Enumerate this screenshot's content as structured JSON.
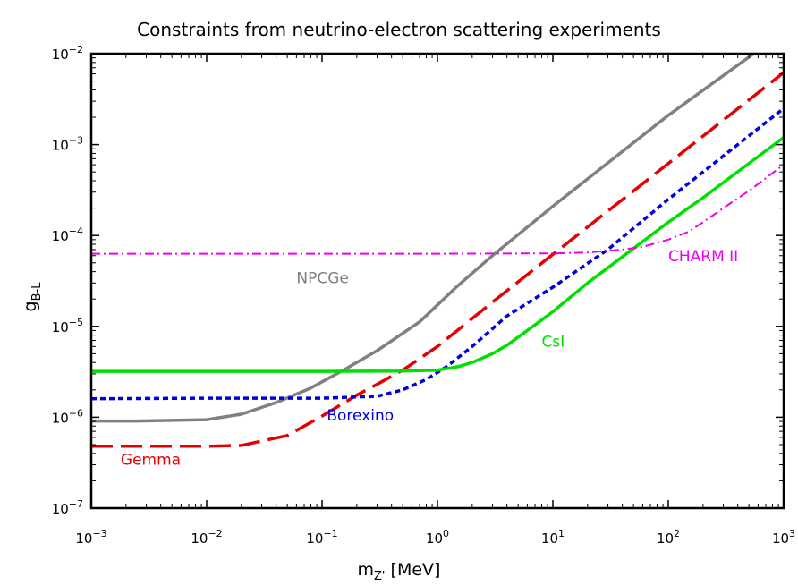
{
  "chart_data": {
    "type": "line",
    "title": "Constraints from neutrino-electron scattering experiments",
    "xlabel": {
      "base": "m",
      "sub": "Z'",
      "unit": " [MeV]"
    },
    "ylabel": {
      "base": "g",
      "sub": "B-L"
    },
    "xscale": "log",
    "yscale": "log",
    "xlim": [
      0.001,
      1000
    ],
    "ylim": [
      1e-07,
      0.01
    ],
    "grid": false,
    "x_ticks": [
      {
        "base": "10",
        "exp": "−3"
      },
      {
        "base": "10",
        "exp": "−2"
      },
      {
        "base": "10",
        "exp": "−1"
      },
      {
        "base": "10",
        "exp": "0"
      },
      {
        "base": "10",
        "exp": "1"
      },
      {
        "base": "10",
        "exp": "2"
      },
      {
        "base": "10",
        "exp": "3"
      }
    ],
    "y_ticks": [
      {
        "base": "10",
        "exp": "−7"
      },
      {
        "base": "10",
        "exp": "−6"
      },
      {
        "base": "10",
        "exp": "−5"
      },
      {
        "base": "10",
        "exp": "−4"
      },
      {
        "base": "10",
        "exp": "−3"
      },
      {
        "base": "10",
        "exp": "−2"
      }
    ],
    "series": [
      {
        "name": "NPCGe",
        "color": "#808080",
        "style": "solid",
        "x": [
          0.001,
          0.0025,
          0.01,
          0.02,
          0.04,
          0.08,
          0.16,
          0.3,
          0.7,
          1.5,
          3,
          10,
          100,
          700
        ],
        "y": [
          9.1e-07,
          9.1e-07,
          9.4e-07,
          1.08e-06,
          1.45e-06,
          2.1e-06,
          3.4e-06,
          5.4e-06,
          1.12e-05,
          2.8e-05,
          6e-05,
          0.00021,
          0.0021,
          0.0125
        ]
      },
      {
        "name": "Gemma",
        "color": "#e60000",
        "style": "dashed",
        "x": [
          0.001,
          0.01,
          0.02,
          0.05,
          0.1,
          0.2,
          0.3,
          0.5,
          1,
          3,
          10,
          100,
          1000
        ],
        "y": [
          4.8e-07,
          4.8e-07,
          4.9e-07,
          6.3e-07,
          1.03e-06,
          1.75e-06,
          2.3e-06,
          3.3e-06,
          6e-06,
          1.85e-05,
          6.2e-05,
          0.00062,
          0.0062
        ]
      },
      {
        "name": "Borexino",
        "color": "#0000dd",
        "style": "dotted",
        "x": [
          0.001,
          0.01,
          0.1,
          0.3,
          0.5,
          0.8,
          1.2,
          2,
          4,
          10,
          30,
          100,
          1000
        ],
        "y": [
          1.6e-06,
          1.62e-06,
          1.62e-06,
          1.7e-06,
          2e-06,
          2.6e-06,
          3.6e-06,
          6e-06,
          1.3e-05,
          2.7e-05,
          7e-05,
          0.00025,
          0.0025
        ]
      },
      {
        "name": "CsI",
        "color": "#00e000",
        "style": "solid",
        "x": [
          0.001,
          0.1,
          0.5,
          1,
          1.5,
          2,
          3,
          4,
          6,
          10,
          20,
          50,
          100,
          200,
          1000
        ],
        "y": [
          3.2e-06,
          3.2e-06,
          3.22e-06,
          3.3e-06,
          3.6e-06,
          4e-06,
          5e-06,
          6.2e-06,
          9e-06,
          1.45e-05,
          3e-05,
          7.2e-05,
          0.00014,
          0.00026,
          0.0012
        ]
      },
      {
        "name": "CHARM II",
        "color": "#ee00ee",
        "style": "dashdot",
        "x": [
          0.001,
          1,
          10,
          20,
          40,
          60,
          100,
          150,
          200,
          300,
          500,
          1000
        ],
        "y": [
          6.3e-05,
          6.3e-05,
          6.35e-05,
          6.5e-05,
          7e-05,
          7.5e-05,
          9e-05,
          0.00011,
          0.00014,
          0.0002,
          0.00031,
          0.0006
        ]
      }
    ],
    "annotations": [
      {
        "text": "NPCGe",
        "color": "#808080",
        "x": 0.06,
        "y": 3e-05
      },
      {
        "text": "CsI",
        "color": "#00e000",
        "x": 8.0,
        "y": 6e-06
      },
      {
        "text": "Borexino",
        "color": "#0000dd",
        "x": 0.11,
        "y": 9.2e-07
      },
      {
        "text": "Gemma",
        "color": "#e60000",
        "x": 0.0018,
        "y": 3e-07
      },
      {
        "text": "CHARM II",
        "color": "#ee00ee",
        "x": 100,
        "y": 5.2e-05
      }
    ]
  }
}
